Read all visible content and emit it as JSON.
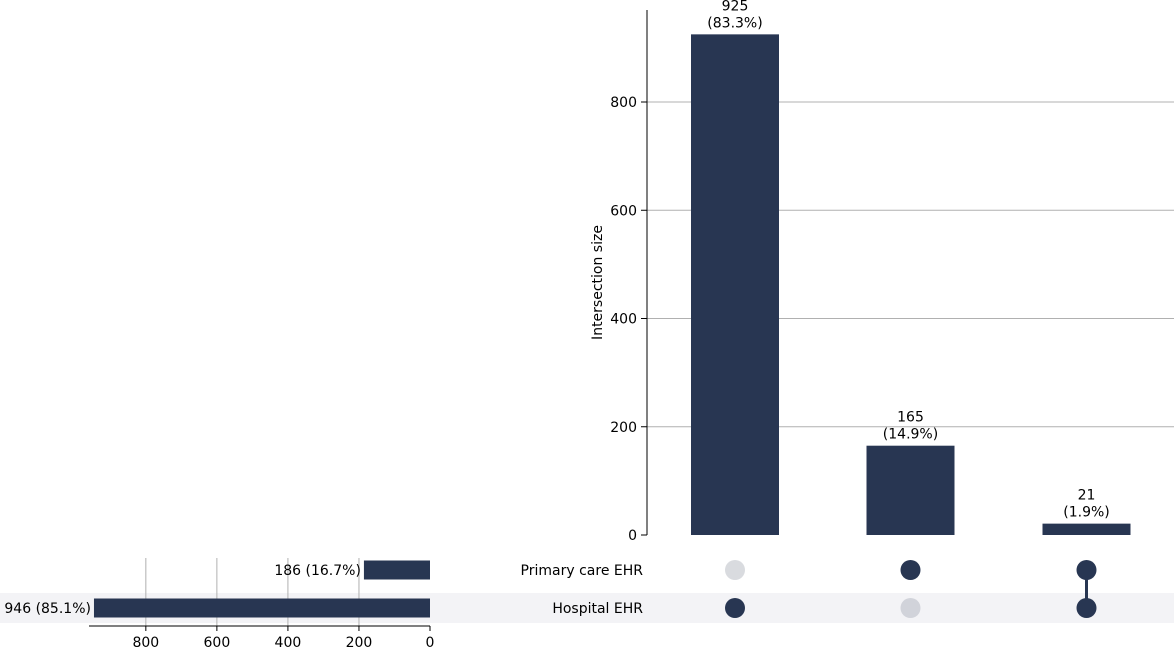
{
  "chart_data": {
    "type": "upset",
    "colors": {
      "bar": "#283652",
      "dot_active": "#283652",
      "dot_inactive_row0": "#d9dbdf",
      "dot_inactive_row1": "#d1d3da",
      "row_shade": "#f3f3f6",
      "grid": "#b0b0b0",
      "axis": "#000000"
    },
    "intersections": {
      "ylabel": "Intersection size",
      "ylim": [
        0,
        970
      ],
      "yticks": [
        0,
        200,
        400,
        600,
        800
      ],
      "ytick_labels": [
        "0",
        "200",
        "400",
        "600",
        "800"
      ],
      "bars": [
        {
          "value": 925,
          "count_label": "925",
          "pct_label": "(83.3%)",
          "members": [
            "Hospital EHR"
          ]
        },
        {
          "value": 165,
          "count_label": "165",
          "pct_label": "(14.9%)",
          "members": [
            "Primary care EHR"
          ]
        },
        {
          "value": 21,
          "count_label": "21",
          "pct_label": "(1.9%)",
          "members": [
            "Primary care EHR",
            "Hospital EHR"
          ]
        }
      ]
    },
    "sets": {
      "xlim_reversed": [
        960,
        0
      ],
      "xticks": [
        800,
        600,
        400,
        200,
        0
      ],
      "xtick_labels": [
        "800",
        "600",
        "400",
        "200",
        "0"
      ],
      "rows": [
        {
          "name": "Primary care EHR",
          "value": 186,
          "label": "186 (16.7%)"
        },
        {
          "name": "Hospital EHR",
          "value": 946,
          "label": "946 (85.1%)"
        }
      ]
    }
  }
}
